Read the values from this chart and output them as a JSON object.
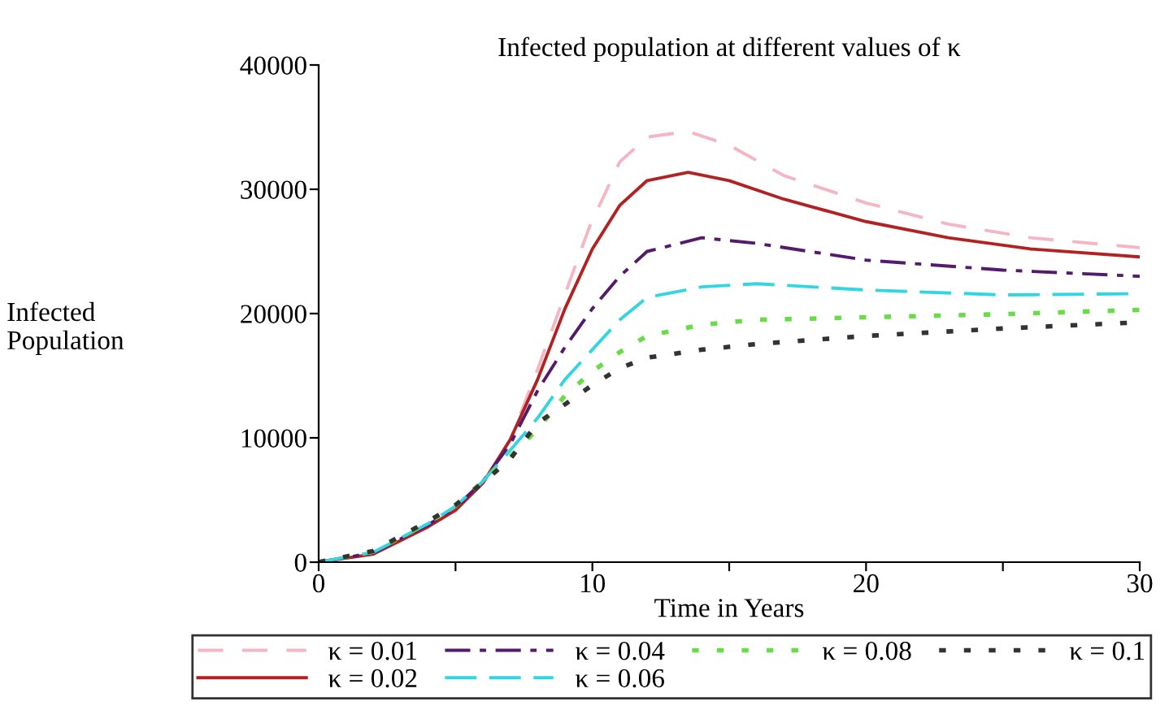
{
  "chart_data": {
    "type": "line",
    "title": "Infected population at different values of κ",
    "xlabel": "Time in Years",
    "ylabel": "Infected\nPopulation",
    "xlim": [
      0,
      30
    ],
    "ylim": [
      0,
      40000
    ],
    "xticks": [
      0,
      {
        "value": 5,
        "label": null
      },
      10,
      {
        "value": 15,
        "label": null
      },
      20,
      {
        "value": 25,
        "label": null
      },
      30
    ],
    "yticks": [
      0,
      10000,
      20000,
      30000,
      40000
    ],
    "grid": false,
    "legend": "bottom",
    "series": [
      {
        "name": "κ = 0.01",
        "color": "#f4b6c2",
        "line_style": "dashed",
        "x": [
          0,
          2,
          4,
          5,
          6,
          7,
          8,
          9.9,
          11,
          12,
          13.5,
          15,
          17,
          20,
          23,
          26,
          30
        ],
        "values": [
          0,
          700,
          2950,
          4300,
          6400,
          9800,
          15500,
          27000,
          32200,
          34200,
          34650,
          33550,
          31100,
          28900,
          27200,
          26100,
          25300
        ]
      },
      {
        "name": "κ = 0.02",
        "color": "#b22222",
        "line_style": "solid",
        "x": [
          0,
          2,
          4,
          5,
          6,
          7,
          8,
          9,
          10,
          11,
          12,
          13.5,
          15,
          17,
          20,
          23,
          26,
          30
        ],
        "values": [
          0,
          650,
          2850,
          4170,
          6360,
          9870,
          14700,
          20400,
          25200,
          28700,
          30700,
          31360,
          30700,
          29200,
          27400,
          26100,
          25200,
          24560
        ]
      },
      {
        "name": "κ = 0.04",
        "color": "#551a6b",
        "line_style": "dashdot",
        "x": [
          0,
          2,
          4,
          5,
          6,
          7,
          8,
          9,
          10,
          11,
          12,
          14,
          16,
          20,
          25,
          30
        ],
        "values": [
          0,
          750,
          3000,
          4400,
          6500,
          9500,
          13800,
          17300,
          20400,
          23000,
          25000,
          26100,
          25650,
          24300,
          23500,
          23000
        ]
      },
      {
        "name": "κ = 0.06",
        "color": "#33d6e0",
        "line_style": "longdash",
        "x": [
          0,
          2,
          4,
          5,
          6,
          7,
          8,
          9,
          10,
          11,
          12,
          14,
          16,
          20,
          25,
          30
        ],
        "values": [
          0,
          800,
          3100,
          4500,
          6500,
          9000,
          11600,
          14700,
          17100,
          19500,
          21300,
          22150,
          22400,
          21900,
          21500,
          21600
        ]
      },
      {
        "name": "κ = 0.08",
        "color": "#66dd44",
        "line_style": "dotted",
        "x": [
          0,
          2,
          4,
          5,
          6,
          7,
          8,
          9,
          10,
          11,
          12,
          14,
          16,
          20,
          25,
          30
        ],
        "values": [
          0,
          850,
          3200,
          4550,
          6500,
          8500,
          10700,
          13400,
          15350,
          16900,
          18200,
          19100,
          19500,
          19700,
          19950,
          20300
        ]
      },
      {
        "name": "κ = 0.1",
        "color": "#333333",
        "line_style": "dotted",
        "x": [
          0,
          2,
          4,
          5,
          6,
          7,
          8,
          9,
          10,
          11,
          12,
          14,
          16,
          20,
          25,
          30
        ],
        "values": [
          0,
          900,
          3300,
          4600,
          6400,
          8300,
          11200,
          12700,
          14250,
          15600,
          16450,
          17100,
          17550,
          18200,
          18800,
          19300
        ]
      }
    ]
  }
}
